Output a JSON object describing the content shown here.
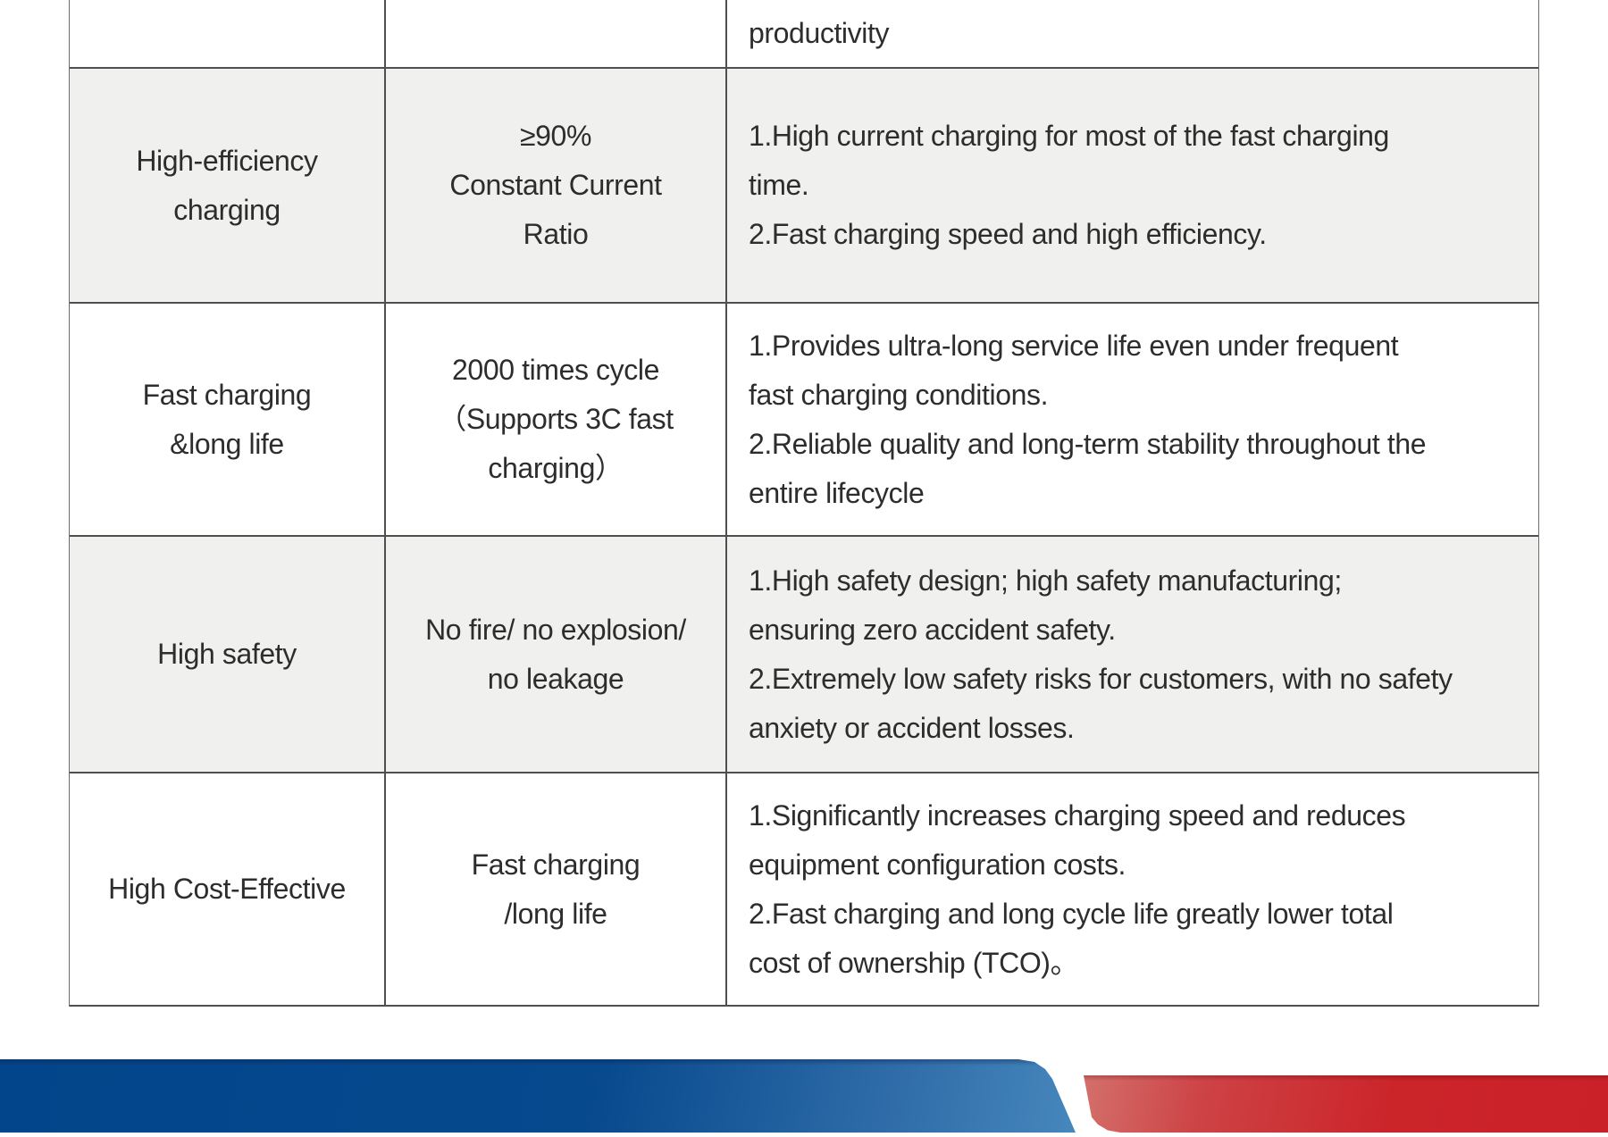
{
  "table": {
    "partial_top_row": {
      "benefit_lines": [
        "productivity"
      ]
    },
    "rows": [
      {
        "feature_lines": [
          "High-efficiency",
          "charging"
        ],
        "spec_lines": [
          "≥90%",
          "Constant Current",
          "Ratio"
        ],
        "benefit_lines": [
          "1.High current charging for most of the fast charging",
          "time.",
          "2.Fast charging speed and high efficiency."
        ]
      },
      {
        "feature_lines": [
          "Fast charging",
          "&long life"
        ],
        "spec_lines": [
          "2000 times cycle",
          "（Supports 3C fast",
          "charging）"
        ],
        "benefit_lines": [
          "1.Provides ultra-long service life even under frequent",
          "fast charging conditions.",
          "2.Reliable quality and long-term stability throughout the",
          "entire lifecycle"
        ]
      },
      {
        "feature_lines": [
          "High safety"
        ],
        "spec_lines": [
          "No fire/ no explosion/",
          "no leakage"
        ],
        "benefit_lines": [
          "1.High safety design; high safety manufacturing;",
          "ensuring zero accident safety.",
          "2.Extremely low safety risks for customers, with no safety",
          "anxiety or accident losses."
        ]
      },
      {
        "feature_lines": [
          "High Cost-Effective"
        ],
        "spec_lines": [
          "Fast charging",
          "/long life"
        ],
        "benefit_lines": [
          "1.Significantly increases charging speed and reduces",
          "equipment configuration costs.",
          "2.Fast charging and long cycle life greatly lower total",
          "cost of ownership (TCO)。"
        ]
      }
    ]
  },
  "footer": {
    "accent_blue": "#07498d",
    "accent_red": "#cb2329"
  }
}
